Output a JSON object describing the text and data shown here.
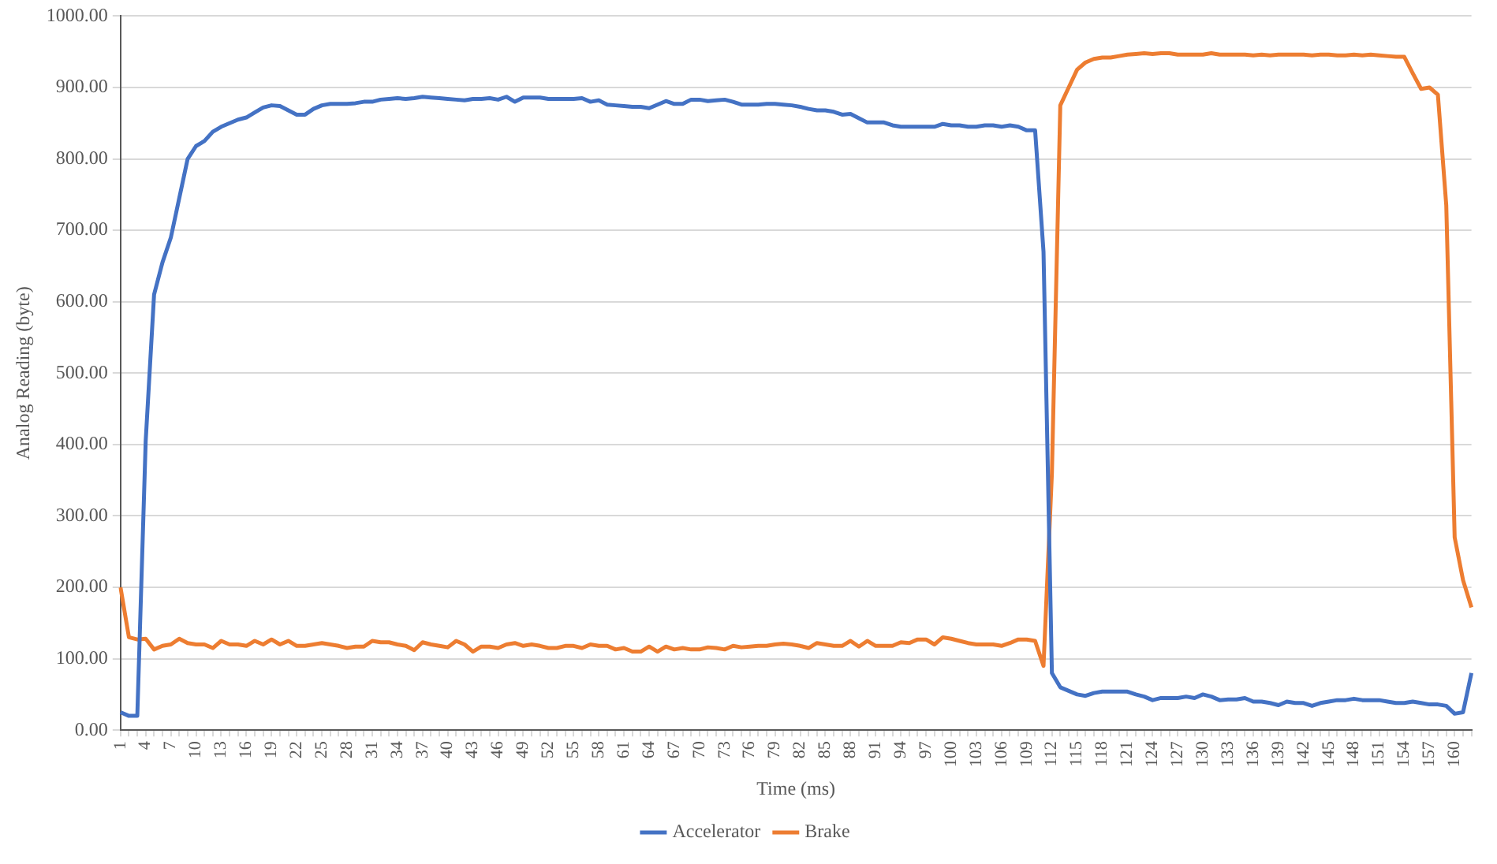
{
  "chart_data": {
    "type": "line",
    "xlabel": "Time (ms)",
    "ylabel": "Analog Reading (byte)",
    "categories": [
      "1",
      null,
      null,
      "4",
      null,
      null,
      "7",
      null,
      null,
      "10",
      null,
      null,
      "13",
      null,
      null,
      "16",
      null,
      null,
      "19",
      null,
      null,
      "22",
      null,
      null,
      "25",
      null,
      null,
      "28",
      null,
      null,
      "31",
      null,
      null,
      "34",
      null,
      null,
      "37",
      null,
      null,
      "40",
      null,
      null,
      "43",
      null,
      null,
      "46",
      null,
      null,
      "49",
      null,
      null,
      "52",
      null,
      null,
      "55",
      null,
      null,
      "58",
      null,
      null,
      "61",
      null,
      null,
      "64",
      null,
      null,
      "67",
      null,
      null,
      "70",
      null,
      null,
      "73",
      null,
      null,
      "76",
      null,
      null,
      "79",
      null,
      null,
      "82",
      null,
      null,
      "85",
      null,
      null,
      "88",
      null,
      null,
      "91",
      null,
      null,
      "94",
      null,
      null,
      "97",
      null,
      null,
      "100",
      null,
      null,
      "103",
      null,
      null,
      "106",
      null,
      null,
      "109",
      null,
      null,
      "112",
      null,
      null,
      "115",
      null,
      null,
      "118",
      null,
      null,
      "121",
      null,
      null,
      "124",
      null,
      null,
      "127",
      null,
      null,
      "130",
      null,
      null,
      "133",
      null,
      null,
      "136",
      null,
      null,
      "139",
      null,
      null,
      "142",
      null,
      null,
      "145",
      null,
      null,
      "148",
      null,
      null,
      "151",
      null,
      null,
      "154",
      null,
      null,
      "157",
      null,
      null,
      "160",
      null,
      null
    ],
    "series": [
      {
        "name": "Accelerator",
        "color": "#4472c4",
        "values": [
          25,
          20,
          20,
          405,
          610,
          655,
          690,
          745,
          800,
          818,
          825,
          838,
          845,
          850,
          855,
          858,
          865,
          872,
          875,
          874,
          868,
          862,
          862,
          870,
          875,
          877,
          877,
          877,
          878,
          880,
          880,
          883,
          884,
          885,
          884,
          885,
          887,
          886,
          885,
          884,
          883,
          882,
          884,
          884,
          885,
          883,
          887,
          880,
          886,
          886,
          886,
          884,
          884,
          884,
          884,
          885,
          880,
          882,
          876,
          875,
          874,
          873,
          873,
          871,
          876,
          881,
          877,
          877,
          883,
          883,
          881,
          882,
          883,
          880,
          876,
          876,
          876,
          877,
          877,
          876,
          875,
          873,
          870,
          868,
          868,
          866,
          862,
          863,
          857,
          851,
          851,
          851,
          847,
          845,
          845,
          845,
          845,
          845,
          849,
          847,
          847,
          845,
          845,
          847,
          847,
          845,
          847,
          845,
          840,
          840,
          670,
          80,
          60,
          55,
          50,
          48,
          52,
          54,
          54,
          54,
          54,
          50,
          47,
          42,
          45,
          45,
          45,
          47,
          45,
          50,
          47,
          42,
          43,
          43,
          45,
          40,
          40,
          38,
          35,
          40,
          38,
          38,
          34,
          38,
          40,
          42,
          42,
          44,
          42,
          42,
          42,
          40,
          38,
          38,
          40,
          38,
          36,
          36,
          34,
          23,
          25,
          80
        ]
      },
      {
        "name": "Brake",
        "color": "#ed7d31",
        "values": [
          200,
          130,
          127,
          128,
          113,
          118,
          120,
          128,
          122,
          120,
          120,
          115,
          125,
          120,
          120,
          118,
          125,
          120,
          127,
          120,
          125,
          118,
          118,
          120,
          122,
          120,
          118,
          115,
          117,
          117,
          125,
          123,
          123,
          120,
          118,
          112,
          123,
          120,
          118,
          116,
          125,
          120,
          110,
          117,
          117,
          115,
          120,
          122,
          118,
          120,
          118,
          115,
          115,
          118,
          118,
          115,
          120,
          118,
          118,
          113,
          115,
          110,
          110,
          117,
          110,
          117,
          113,
          115,
          113,
          113,
          116,
          115,
          113,
          118,
          116,
          117,
          118,
          118,
          120,
          121,
          120,
          118,
          115,
          122,
          120,
          118,
          118,
          125,
          117,
          125,
          118,
          118,
          118,
          123,
          122,
          127,
          127,
          120,
          130,
          128,
          125,
          122,
          120,
          120,
          120,
          118,
          122,
          127,
          127,
          125,
          90,
          360,
          875,
          900,
          925,
          935,
          940,
          942,
          942,
          944,
          946,
          947,
          948,
          947,
          948,
          948,
          946,
          946,
          946,
          946,
          948,
          946,
          946,
          946,
          946,
          945,
          946,
          945,
          946,
          946,
          946,
          946,
          945,
          946,
          946,
          945,
          945,
          946,
          945,
          946,
          945,
          944,
          943,
          943,
          920,
          898,
          900,
          890,
          735,
          270,
          210,
          172
        ]
      }
    ],
    "ylim": [
      0,
      1000
    ],
    "yticks": [
      {
        "value": 0,
        "label": "0.00"
      },
      {
        "value": 100,
        "label": "100.00"
      },
      {
        "value": 200,
        "label": "200.00"
      },
      {
        "value": 300,
        "label": "300.00"
      },
      {
        "value": 400,
        "label": "400.00"
      },
      {
        "value": 500,
        "label": "500.00"
      },
      {
        "value": 600,
        "label": "600.00"
      },
      {
        "value": 700,
        "label": "700.00"
      },
      {
        "value": 800,
        "label": "800.00"
      },
      {
        "value": 900,
        "label": "900.00"
      },
      {
        "value": 1000,
        "label": "1000.00"
      }
    ],
    "grid": "y",
    "legend": "bottom",
    "marker": "none",
    "line_style": "solid"
  }
}
